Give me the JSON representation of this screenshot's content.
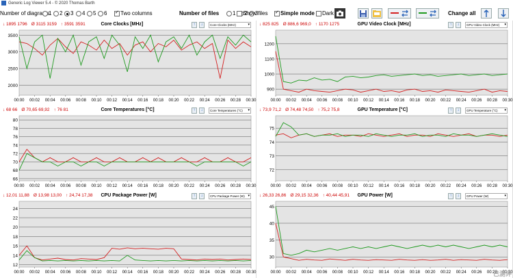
{
  "window": {
    "title": "Generic Log Viewer 5.4 - © 2020 Thomas Barth"
  },
  "toolbar": {
    "diagrams_label": "Number of diagrams",
    "diagram_options": [
      "1",
      "2",
      "3",
      "4",
      "5",
      "6"
    ],
    "diagram_selected": "3",
    "two_columns_label": "Two columns",
    "two_columns_checked": true,
    "files_label": "Number of files",
    "file_options": [
      "1",
      "2",
      "3"
    ],
    "file_selected": "2",
    "show_files_label": "Show files",
    "show_files_checked": false,
    "simple_mode_label": "Simple mode",
    "simple_mode_checked": true,
    "dark_label": "Dark",
    "dark_checked": false,
    "change_all_label": "Change all"
  },
  "colors": {
    "red": "#d42020",
    "green": "#1e9a1e",
    "plot_bg": "#e4e4e4"
  },
  "x_ticks": [
    "00:00",
    "00:02",
    "00:04",
    "00:06",
    "00:08",
    "00:10",
    "00:12",
    "00:14",
    "00:16",
    "00:18",
    "00:20",
    "00:22",
    "00:24",
    "00:26",
    "00:28",
    "00:30"
  ],
  "panels": [
    {
      "title": "Core Clocks [MHz]",
      "dropdown": "Core Clocks (MHz)",
      "stats_red": "↓ 1895 1796",
      "stats_avg": "Ø 3115 3159",
      "stats_max": "↑ 3591 3591",
      "y_ticks": [
        "2000",
        "2500",
        "3000",
        "3500"
      ]
    },
    {
      "title": "GPU Video Clock [MHz]",
      "dropdown": "GPU Video Clock (MHz)",
      "stats_red": "↓ 825 825",
      "stats_avg": "Ø 886,6 969,0",
      "stats_max": "↑ 1170 1275",
      "y_ticks": [
        "900",
        "1000",
        "1100",
        "1200"
      ]
    },
    {
      "title": "Core Temperatures [°C]",
      "dropdown": "Core Temperatures (°C)",
      "stats_red": "↓ 68 66",
      "stats_avg": "Ø 70,65 69,92",
      "stats_max": "↑ 76 81",
      "y_ticks": [
        "66",
        "68",
        "70",
        "72",
        "74",
        "76",
        "78",
        "80"
      ]
    },
    {
      "title": "GPU Temperature [°C]",
      "dropdown": "GPU Temperature (°C)",
      "stats_red": "↓ 73,9 71,2",
      "stats_avg": "Ø 74,48 74,50",
      "stats_max": "↑ 75,2 75,8",
      "y_ticks": [
        "72",
        "73",
        "74",
        "75"
      ]
    },
    {
      "title": "CPU Package Power [W]",
      "dropdown": "CPU Package Power (W)",
      "stats_red": "↓ 12,01 11,88",
      "stats_avg": "Ø 13,98 13,00",
      "stats_max": "↑ 24,74 17,38",
      "y_ticks": [
        "12",
        "14",
        "16",
        "18",
        "20",
        "22",
        "24"
      ]
    },
    {
      "title": "GPU Power [W]",
      "dropdown": "GPU Power (W)",
      "stats_red": "↓ 26,33 26,86",
      "stats_avg": "Ø 29,15 32,36",
      "stats_max": "↑ 40,44 45,91",
      "y_ticks": [
        "30",
        "35",
        "40",
        "45"
      ]
    }
  ],
  "chart_data": [
    {
      "type": "line",
      "title": "Core Clocks [MHz]",
      "xlabel": "",
      "ylabel": "",
      "x_range": [
        "00:00",
        "00:30"
      ],
      "ylim": [
        1700,
        3650
      ],
      "grid": true,
      "series": [
        {
          "color": "#d42020",
          "min": 1895,
          "avg": 3115,
          "max": 3591,
          "values": [
            3300,
            3250,
            3100,
            2900,
            3200,
            3400,
            3150,
            2950,
            3300,
            3200,
            3050,
            3350,
            3100,
            3250,
            2900,
            3200,
            3300,
            3000,
            3250,
            3150,
            3350,
            3050,
            3200,
            3300,
            3100,
            3250,
            2200,
            3350,
            3100,
            3300,
            3150
          ]
        },
        {
          "color": "#1e9a1e",
          "min": 1796,
          "avg": 3159,
          "max": 3591,
          "values": [
            3450,
            2500,
            3300,
            3500,
            2200,
            3400,
            3000,
            3500,
            2600,
            3300,
            3450,
            2800,
            3500,
            3200,
            2400,
            3450,
            3100,
            3500,
            2700,
            3300,
            3450,
            3100,
            3500,
            2900,
            3300,
            3500,
            2800,
            3450,
            3200,
            3500,
            3300
          ]
        }
      ]
    },
    {
      "type": "line",
      "title": "GPU Video Clock [MHz]",
      "xlabel": "",
      "ylabel": "",
      "x_range": [
        "00:00",
        "00:30"
      ],
      "ylim": [
        860,
        1290
      ],
      "grid": true,
      "series": [
        {
          "color": "#d42020",
          "min": 825,
          "avg": 886.6,
          "max": 1170,
          "values": [
            1150,
            900,
            890,
            880,
            900,
            890,
            885,
            880,
            890,
            900,
            895,
            880,
            890,
            900,
            885,
            890,
            880,
            895,
            900,
            885,
            890,
            880,
            895,
            890,
            885,
            880,
            890,
            900,
            880,
            890,
            885
          ]
        },
        {
          "color": "#1e9a1e",
          "min": 825,
          "avg": 969.0,
          "max": 1275,
          "values": [
            1250,
            950,
            940,
            960,
            955,
            975,
            960,
            965,
            950,
            980,
            985,
            975,
            980,
            990,
            995,
            985,
            990,
            995,
            1000,
            990,
            995,
            985,
            990,
            995,
            1000,
            990,
            995,
            1000,
            990,
            995,
            1000
          ]
        }
      ]
    },
    {
      "type": "line",
      "title": "Core Temperatures [°C]",
      "xlabel": "",
      "ylabel": "",
      "x_range": [
        "00:00",
        "00:30"
      ],
      "ylim": [
        65.5,
        81
      ],
      "grid": true,
      "series": [
        {
          "color": "#d42020",
          "min": 68,
          "avg": 70.65,
          "max": 76,
          "values": [
            70,
            73,
            71,
            70,
            71,
            70,
            70,
            71,
            70,
            70,
            71,
            70,
            70,
            71,
            70,
            70,
            71,
            70,
            71,
            70,
            70,
            71,
            70,
            70,
            71,
            70,
            70,
            71,
            70,
            70,
            71
          ]
        },
        {
          "color": "#1e9a1e",
          "min": 66,
          "avg": 69.92,
          "max": 81,
          "values": [
            68,
            72,
            71,
            70,
            70,
            69,
            70,
            70,
            69,
            70,
            70,
            69,
            70,
            70,
            70,
            70,
            70,
            70,
            70,
            70,
            70,
            70,
            70,
            69,
            70,
            70,
            70,
            70,
            70,
            69,
            70
          ]
        }
      ]
    },
    {
      "type": "line",
      "title": "GPU Temperature [°C]",
      "xlabel": "",
      "ylabel": "",
      "x_range": [
        "00:00",
        "00:30"
      ],
      "ylim": [
        71.2,
        75.9
      ],
      "grid": true,
      "series": [
        {
          "color": "#d42020",
          "min": 73.9,
          "avg": 74.48,
          "max": 75.2,
          "values": [
            74.5,
            74.6,
            74.3,
            74.5,
            74.6,
            74.4,
            74.5,
            74.6,
            74.4,
            74.5,
            74.5,
            74.4,
            74.6,
            74.5,
            74.4,
            74.5,
            74.6,
            74.4,
            74.5,
            74.5,
            74.4,
            74.6,
            74.5,
            74.4,
            74.5,
            74.6,
            74.4,
            74.5,
            74.5,
            74.4,
            74.5
          ]
        },
        {
          "color": "#1e9a1e",
          "min": 71.2,
          "avg": 74.5,
          "max": 75.8,
          "values": [
            74.4,
            75.4,
            75.1,
            74.5,
            74.6,
            74.4,
            74.5,
            74.5,
            74.6,
            74.4,
            74.5,
            74.5,
            74.4,
            74.6,
            74.5,
            74.4,
            74.5,
            74.5,
            74.6,
            74.4,
            74.5,
            74.5,
            74.4,
            74.6,
            74.5,
            74.5,
            74.4,
            74.5,
            74.6,
            74.5,
            74.4
          ]
        }
      ]
    },
    {
      "type": "line",
      "title": "CPU Package Power [W]",
      "xlabel": "",
      "ylabel": "",
      "x_range": [
        "00:00",
        "00:30"
      ],
      "ylim": [
        11.5,
        25.5
      ],
      "grid": true,
      "series": [
        {
          "color": "#d42020",
          "min": 12.01,
          "avg": 13.98,
          "max": 24.74,
          "values": [
            14,
            16,
            13.5,
            13,
            13.2,
            13.4,
            13.1,
            13,
            13.3,
            13.2,
            13.1,
            13.5,
            15.5,
            15.3,
            15.6,
            15.4,
            15.5,
            15.4,
            15.3,
            15.5,
            15.4,
            13.2,
            13.1,
            13,
            13.2,
            13.1,
            13.2,
            13,
            13.1,
            13.2,
            13.1
          ]
        },
        {
          "color": "#1e9a1e",
          "min": 11.88,
          "avg": 13.0,
          "max": 17.38,
          "values": [
            13,
            15,
            13.5,
            12.8,
            12.9,
            12.8,
            12.9,
            12.8,
            12.9,
            12.8,
            12.9,
            12.8,
            12.9,
            12.8,
            14,
            13,
            12.9,
            12.8,
            12.9,
            12.8,
            12.9,
            12.8,
            12.9,
            12.8,
            12.9,
            12.8,
            12.9,
            12.8,
            12.9,
            12.8,
            12.9
          ]
        }
      ]
    },
    {
      "type": "line",
      "title": "GPU Power [W]",
      "xlabel": "",
      "ylabel": "",
      "x_range": [
        "00:00",
        "00:30"
      ],
      "ylim": [
        27,
        46.5
      ],
      "grid": true,
      "series": [
        {
          "color": "#d42020",
          "min": 26.33,
          "avg": 29.15,
          "max": 40.44,
          "values": [
            40,
            30,
            29.5,
            29,
            29.3,
            29.1,
            29,
            29.4,
            29.2,
            29,
            29.3,
            29.1,
            29,
            29.2,
            29.1,
            29,
            29.3,
            29.1,
            29,
            29.2,
            29,
            29.1,
            29.3,
            29,
            29.2,
            29.1,
            29,
            29.3,
            29.1,
            29,
            29.2
          ]
        },
        {
          "color": "#1e9a1e",
          "min": 26.86,
          "avg": 32.36,
          "max": 45.91,
          "values": [
            45,
            31,
            30.5,
            31,
            32,
            31.5,
            32,
            32.5,
            32,
            32.5,
            33,
            32.5,
            33,
            32.5,
            33,
            33.5,
            33,
            32.5,
            33,
            33.5,
            33,
            33.5,
            33,
            33.5,
            33,
            32.5,
            33,
            33.5,
            33,
            33.5,
            33
          ]
        }
      ]
    }
  ],
  "watermark": "已测评"
}
